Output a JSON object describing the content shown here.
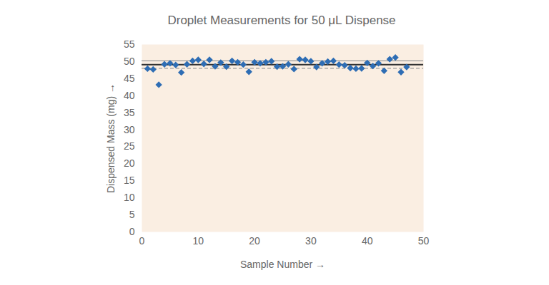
{
  "chart_data": {
    "type": "scatter",
    "title": "Droplet Measurements for 50 μL Dispense",
    "x_label": "Sample Number",
    "y_label": "Dispensed Mass (mg)",
    "x": [
      1,
      2,
      3,
      4,
      5,
      6,
      7,
      8,
      9,
      10,
      11,
      12,
      13,
      14,
      15,
      16,
      17,
      18,
      19,
      20,
      21,
      22,
      23,
      24,
      25,
      26,
      27,
      28,
      29,
      30,
      31,
      32,
      33,
      34,
      35,
      36,
      37,
      38,
      39,
      40,
      41,
      42,
      43,
      44,
      45,
      46,
      47
    ],
    "values": [
      47.9,
      47.7,
      43.2,
      49.2,
      49.5,
      49.0,
      46.8,
      49.2,
      50.2,
      50.5,
      49.3,
      50.5,
      48.6,
      49.7,
      48.5,
      50.2,
      49.8,
      49.1,
      47.0,
      49.8,
      49.5,
      49.8,
      50.1,
      48.5,
      48.6,
      49.2,
      47.8,
      50.7,
      50.5,
      50.1,
      48.4,
      49.5,
      50.0,
      50.2,
      49.1,
      48.9,
      48.1,
      47.9,
      48.0,
      49.6,
      48.7,
      49.5,
      47.3,
      50.7,
      51.2,
      46.9,
      48.4
    ],
    "color": "#2e6db4",
    "marker": "diamond",
    "xlim": [
      0,
      50
    ],
    "xticks": [
      0,
      10,
      20,
      30,
      40,
      50
    ],
    "ylim": [
      0,
      55
    ],
    "yticks": [
      0,
      5,
      10,
      15,
      20,
      25,
      30,
      35,
      40,
      45,
      50,
      55
    ],
    "grid": false,
    "reference_lines": [
      {
        "value": 50.2,
        "color": "#999999",
        "line_style": "solid"
      },
      {
        "value": 49.1,
        "color": "#333333",
        "line_style": "solid"
      },
      {
        "value": 48.0,
        "color": "#999999",
        "line_style": "dashed"
      }
    ]
  }
}
